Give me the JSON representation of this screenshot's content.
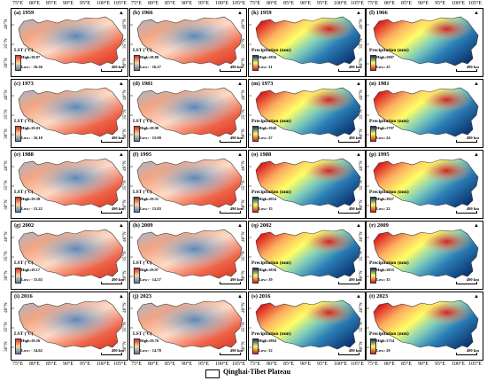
{
  "longitude_ticks": [
    "75°E",
    "80°E",
    "85°E",
    "90°E",
    "95°E",
    "100°E",
    "105°E"
  ],
  "latitude_ticks": [
    "40°N",
    "35°N",
    "30°N"
  ],
  "lst_legend_title": "LST (°C)",
  "precip_legend_title": "Precipitation (mm)",
  "scale_text": "490 km",
  "north_symbol": "N",
  "bottom_legend": "Qinghai-Tibet Plateau",
  "panels": [
    {
      "label": "(a) 1959",
      "type": "lst",
      "high": "High:18.87",
      "low": "Low: - 16.36"
    },
    {
      "label": "(b) 1966",
      "type": "lst",
      "high": "High:18.80",
      "low": "Low: - 16.27"
    },
    {
      "label": "(k) 1959",
      "type": "precip",
      "high": "High:1856",
      "low": "Low: 31"
    },
    {
      "label": "(l) 1966",
      "type": "precip",
      "high": "High:1987",
      "low": "Low: 25"
    },
    {
      "label": "(c) 1973",
      "type": "lst",
      "high": "High:19.03",
      "low": "Low: - 16.18"
    },
    {
      "label": "(d) 1981",
      "type": "lst",
      "high": "High:18.90",
      "low": "Low: - 15.90"
    },
    {
      "label": "(m) 1973",
      "type": "precip",
      "high": "High:1940",
      "low": "Low: 27"
    },
    {
      "label": "(n) 1981",
      "type": "precip",
      "high": "High:1797",
      "low": "Low: 24"
    },
    {
      "label": "(e) 1988",
      "type": "lst",
      "high": "High:19.38",
      "low": "Low: - 15.22"
    },
    {
      "label": "(f) 1995",
      "type": "lst",
      "high": "High:19.31",
      "low": "Low: - 15.83"
    },
    {
      "label": "(o) 1988",
      "type": "precip",
      "high": "High:2054",
      "low": "Low: 15"
    },
    {
      "label": "(p) 1995",
      "type": "precip",
      "high": "High:1927",
      "low": "Low: 22"
    },
    {
      "label": "(g) 2002",
      "type": "lst",
      "high": "High:19.17",
      "low": "Low: - 15.02"
    },
    {
      "label": "(h) 2009",
      "type": "lst",
      "high": "High:19.97",
      "low": "Low: - 14.57"
    },
    {
      "label": "(q) 2002",
      "type": "precip",
      "high": "High:1838",
      "low": "Low: 39"
    },
    {
      "label": "(r) 2009",
      "type": "precip",
      "high": "High:1855",
      "low": "Low: 35"
    },
    {
      "label": "(i) 2016",
      "type": "lst",
      "high": "High:19.56",
      "low": "Low: - 14.62"
    },
    {
      "label": "(j) 2023",
      "type": "lst",
      "high": "High:19.76",
      "low": "Low: - 14.78"
    },
    {
      "label": "(s) 2016",
      "type": "precip",
      "high": "High:1804",
      "low": "Low: 32"
    },
    {
      "label": "(t) 2023",
      "type": "precip",
      "high": "High:1754",
      "low": "Low: 20"
    }
  ],
  "colors": {
    "lst_high": "#d7301f",
    "lst_mid": "#fdd49e",
    "lst_low": "#4a7fb5",
    "precip_high": "#08306b",
    "precip_mid": "#ffff66",
    "precip_low": "#d7191c"
  }
}
